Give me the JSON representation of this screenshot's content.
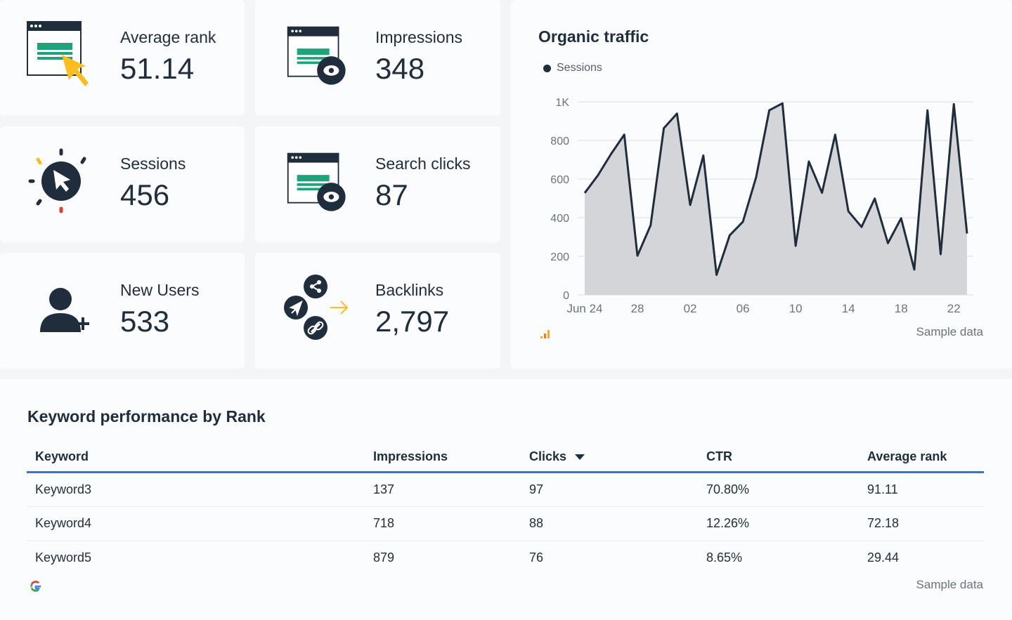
{
  "kpis": [
    {
      "label": "Average rank",
      "value": "51.14",
      "icon": "browser-cursor-icon"
    },
    {
      "label": "Impressions",
      "value": "348",
      "icon": "browser-eye-icon"
    },
    {
      "label": "Sessions",
      "value": "456",
      "icon": "click-burst-icon"
    },
    {
      "label": "Search clicks",
      "value": "87",
      "icon": "browser-eye-icon"
    },
    {
      "label": "New Users",
      "value": "533",
      "icon": "add-user-icon"
    },
    {
      "label": "Backlinks",
      "value": "2,797",
      "icon": "share-link-icon"
    }
  ],
  "chart": {
    "title": "Organic traffic",
    "sample": "Sample data"
  },
  "chart_data": {
    "type": "area",
    "series": [
      {
        "name": "Sessions",
        "color": "#1f2d3d",
        "fill": "#d3d5d9",
        "values": [
          528,
          619,
          730,
          830,
          203,
          361,
          863,
          939,
          466,
          722,
          104,
          309,
          379,
          609,
          956,
          992,
          254,
          691,
          529,
          830,
          433,
          352,
          499,
          268,
          397,
          131,
          956,
          211,
          988,
          318
        ]
      }
    ],
    "x": [
      "Jun 24",
      "Jun 25",
      "Jun 26",
      "Jun 27",
      "Jun 28",
      "Jun 29",
      "Jun 30",
      "Jul 01",
      "Jul 02",
      "Jul 03",
      "Jul 04",
      "Jul 05",
      "Jul 06",
      "Jul 07",
      "Jul 08",
      "Jul 09",
      "Jul 10",
      "Jul 11",
      "Jul 12",
      "Jul 13",
      "Jul 14",
      "Jul 15",
      "Jul 16",
      "Jul 17",
      "Jul 18",
      "Jul 19",
      "Jul 20",
      "Jul 21",
      "Jul 22",
      "Jul 23"
    ],
    "xticks": [
      {
        "i": 0,
        "label": "Jun 24"
      },
      {
        "i": 4,
        "label": "28"
      },
      {
        "i": 8,
        "label": "02"
      },
      {
        "i": 12,
        "label": "06"
      },
      {
        "i": 16,
        "label": "10"
      },
      {
        "i": 20,
        "label": "14"
      },
      {
        "i": 24,
        "label": "18"
      },
      {
        "i": 28,
        "label": "22"
      }
    ],
    "yticks": [
      {
        "v": 0,
        "label": "0"
      },
      {
        "v": 200,
        "label": "200"
      },
      {
        "v": 400,
        "label": "400"
      },
      {
        "v": 600,
        "label": "600"
      },
      {
        "v": 800,
        "label": "800"
      },
      {
        "v": 1000,
        "label": "1K"
      }
    ],
    "ylim": [
      0,
      1000
    ],
    "grid": true,
    "legend": "top-left"
  },
  "table": {
    "title": "Keyword performance by Rank",
    "columns": [
      "Keyword",
      "Impressions",
      "Clicks",
      "CTR",
      "Average rank"
    ],
    "sorted_column": "Clicks",
    "rows": [
      [
        "Keyword3",
        "137",
        "97",
        "70.80%",
        "91.11"
      ],
      [
        "Keyword4",
        "718",
        "88",
        "12.26%",
        "72.18"
      ],
      [
        "Keyword5",
        "879",
        "76",
        "8.65%",
        "29.44"
      ]
    ],
    "sample": "Sample data"
  },
  "colors": {
    "accent": "#3e6fd8",
    "green": "#1fa37a",
    "yellow": "#fbbd1f",
    "navy": "#1f2d3d"
  }
}
